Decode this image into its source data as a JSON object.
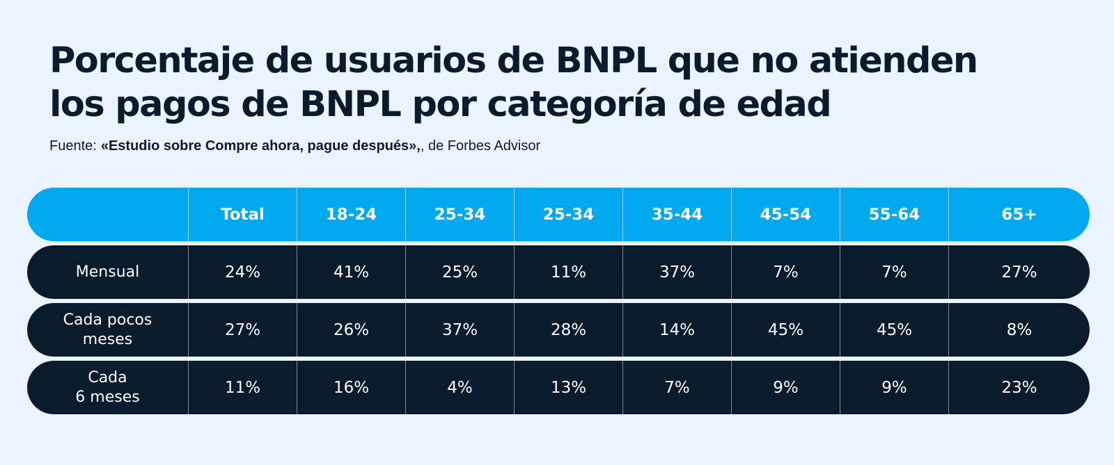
{
  "title_lines": [
    "Porcentaje de usuarios de BNPL que no atienden",
    "los pagos de BNPL por categoría de edad"
  ],
  "source": {
    "lead": "Fuente:",
    "name": "«Estudio sobre Compre ahora, pague después»,",
    "rest": ", de Forbes Advisor"
  },
  "colors": {
    "background": "#EBF3FF",
    "header": "#02A9F1",
    "rows": "#0A1B2D",
    "title_text": "#0B1B2E"
  },
  "chart_data": {
    "type": "table",
    "columns": [
      "",
      "Total",
      "18-24",
      "25-34",
      "25-34",
      "35-44",
      "45-54",
      "55-64",
      "65+"
    ],
    "rows": [
      {
        "label": "Mensual",
        "values": [
          "24%",
          "41%",
          "25%",
          "11%",
          "37%",
          "7%",
          "7%",
          "27%"
        ]
      },
      {
        "label": "Cada pocos\nmeses",
        "values": [
          "27%",
          "26%",
          "37%",
          "28%",
          "14%",
          "45%",
          "45%",
          "8%"
        ]
      },
      {
        "label": "Cada\n6 meses",
        "values": [
          "11%",
          "16%",
          "4%",
          "13%",
          "7%",
          "9%",
          "9%",
          "23%"
        ]
      }
    ]
  }
}
